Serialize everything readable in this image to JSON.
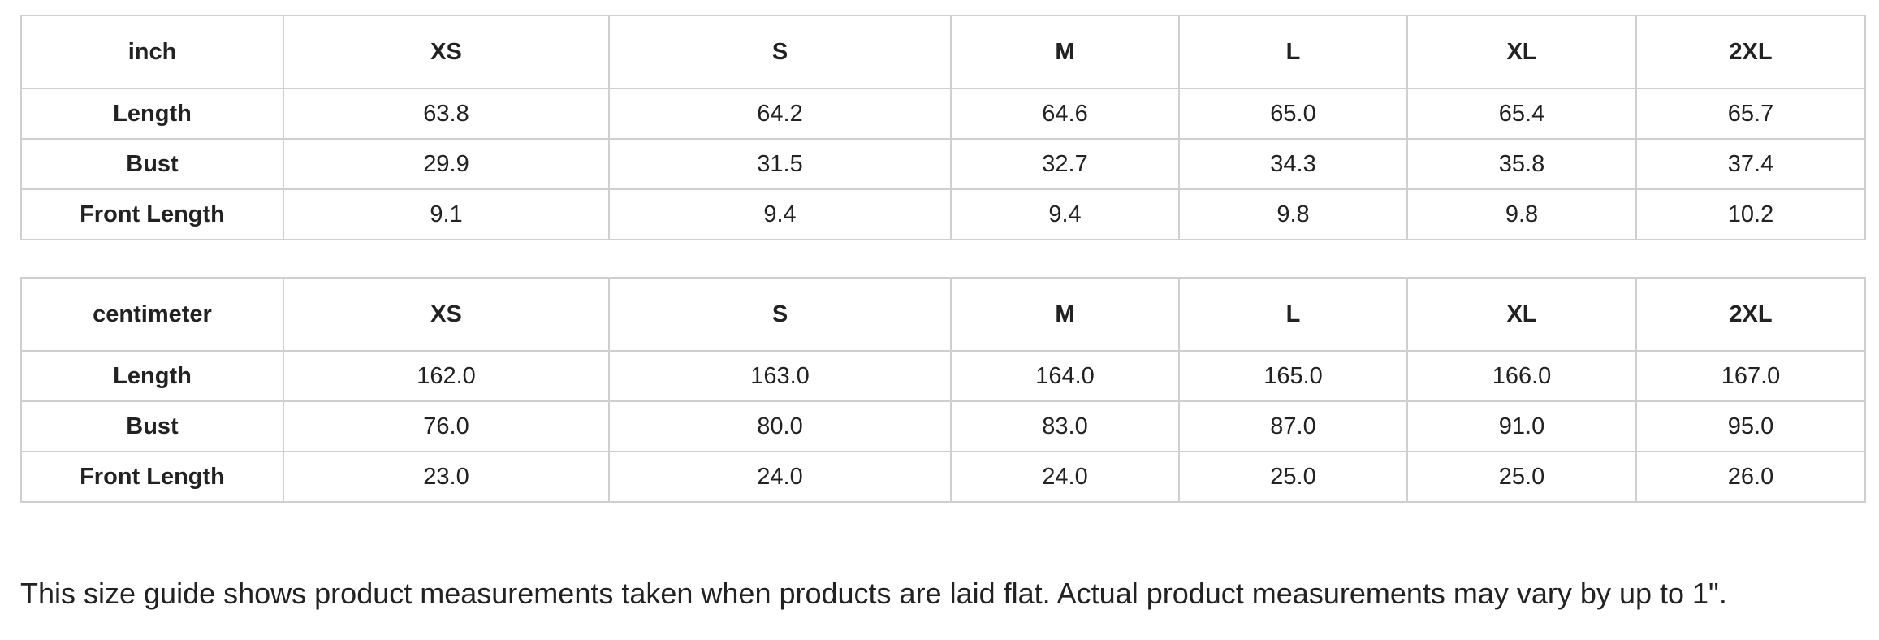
{
  "tables": [
    {
      "unit_label": "inch",
      "columns": [
        "XS",
        "S",
        "M",
        "L",
        "XL",
        "2XL"
      ],
      "rows": [
        {
          "label": "Length",
          "values": [
            "63.8",
            "64.2",
            "64.6",
            "65.0",
            "65.4",
            "65.7"
          ]
        },
        {
          "label": "Bust",
          "values": [
            "29.9",
            "31.5",
            "32.7",
            "34.3",
            "35.8",
            "37.4"
          ]
        },
        {
          "label": "Front Length",
          "values": [
            "9.1",
            "9.4",
            "9.4",
            "9.8",
            "9.8",
            "10.2"
          ]
        }
      ]
    },
    {
      "unit_label": "centimeter",
      "columns": [
        "XS",
        "S",
        "M",
        "L",
        "XL",
        "2XL"
      ],
      "rows": [
        {
          "label": "Length",
          "values": [
            "162.0",
            "163.0",
            "164.0",
            "165.0",
            "166.0",
            "167.0"
          ]
        },
        {
          "label": "Bust",
          "values": [
            "76.0",
            "80.0",
            "83.0",
            "87.0",
            "91.0",
            "95.0"
          ]
        },
        {
          "label": "Front Length",
          "values": [
            "23.0",
            "24.0",
            "24.0",
            "25.0",
            "25.0",
            "26.0"
          ]
        }
      ]
    }
  ],
  "note": "This size guide shows product measurements taken when products are laid flat. Actual product measurements may vary by up to 1\"."
}
